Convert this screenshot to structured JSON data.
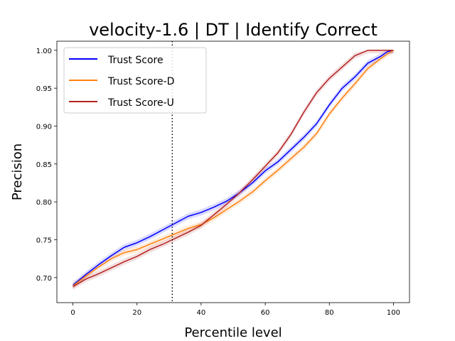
{
  "chart_data": {
    "type": "line",
    "title": "velocity-1.6 | DT | Identify Correct",
    "xlabel": "Percentile level",
    "ylabel": "Precision",
    "xlim": [
      -5,
      105
    ],
    "ylim": [
      0.667,
      1.012
    ],
    "xticks": [
      0,
      20,
      40,
      60,
      80,
      100
    ],
    "yticks": [
      0.7,
      0.75,
      0.8,
      0.85,
      0.9,
      0.95,
      1.0
    ],
    "xtick_labels": [
      "0",
      "20",
      "40",
      "60",
      "80",
      "100"
    ],
    "ytick_labels": [
      "0.70",
      "0.75",
      "0.80",
      "0.85",
      "0.90",
      "0.95",
      "1.00"
    ],
    "grid": false,
    "legend_position": "top-left",
    "vline": {
      "x": 31,
      "style": "dotted",
      "color": "#000000"
    },
    "band_halfwidth": 0.004,
    "series": [
      {
        "name": "Trust Score",
        "color": "#0000ff",
        "x": [
          0,
          4,
          8,
          12,
          16,
          20,
          24,
          28,
          32,
          36,
          40,
          44,
          48,
          52,
          56,
          60,
          64,
          68,
          72,
          76,
          80,
          84,
          88,
          92,
          96,
          98,
          100
        ],
        "values": [
          0.69,
          0.704,
          0.717,
          0.729,
          0.74,
          0.746,
          0.754,
          0.763,
          0.772,
          0.781,
          0.786,
          0.793,
          0.801,
          0.812,
          0.825,
          0.841,
          0.853,
          0.869,
          0.885,
          0.903,
          0.928,
          0.95,
          0.965,
          0.983,
          0.992,
          0.998,
          1.0
        ]
      },
      {
        "name": "Trust Score-D",
        "color": "#ff7f0e",
        "x": [
          0,
          4,
          8,
          12,
          16,
          20,
          24,
          28,
          32,
          36,
          40,
          44,
          48,
          52,
          56,
          60,
          64,
          68,
          72,
          76,
          80,
          84,
          88,
          92,
          96,
          98,
          100
        ],
        "values": [
          0.689,
          0.702,
          0.714,
          0.725,
          0.733,
          0.737,
          0.744,
          0.751,
          0.758,
          0.765,
          0.77,
          0.779,
          0.79,
          0.801,
          0.813,
          0.828,
          0.842,
          0.857,
          0.872,
          0.89,
          0.916,
          0.937,
          0.956,
          0.976,
          0.989,
          0.995,
          1.0
        ]
      },
      {
        "name": "Trust Score-U",
        "color": "#b22222",
        "x": [
          0,
          4,
          8,
          12,
          16,
          20,
          24,
          28,
          32,
          36,
          40,
          44,
          48,
          52,
          56,
          60,
          64,
          68,
          72,
          76,
          80,
          84,
          88,
          92,
          96,
          98,
          100
        ],
        "values": [
          0.688,
          0.698,
          0.705,
          0.713,
          0.721,
          0.728,
          0.737,
          0.744,
          0.752,
          0.76,
          0.769,
          0.783,
          0.797,
          0.812,
          0.829,
          0.847,
          0.865,
          0.889,
          0.918,
          0.944,
          0.963,
          0.978,
          0.993,
          1.0,
          1.0,
          1.0,
          1.0
        ]
      }
    ]
  }
}
